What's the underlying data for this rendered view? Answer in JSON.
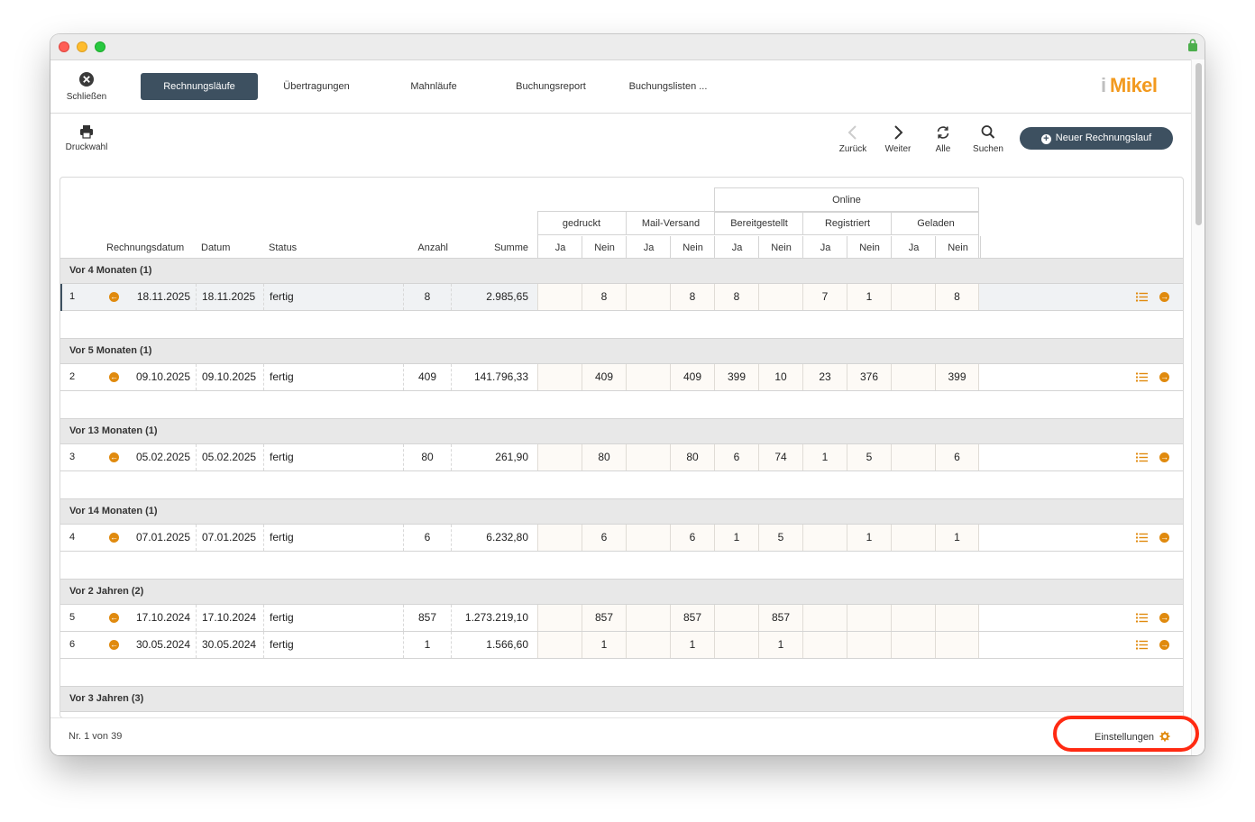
{
  "toolbar": {
    "close_label": "Schließen",
    "tabs": [
      {
        "label": "Rechnungsläufe"
      },
      {
        "label": "Übertragungen"
      },
      {
        "label": "Mahnläufe"
      },
      {
        "label": "Buchungsreport"
      },
      {
        "label": "Buchungslisten ..."
      }
    ],
    "logo_text": "Mikel"
  },
  "actions": {
    "print_label": "Druckwahl",
    "back_label": "Zurück",
    "forward_label": "Weiter",
    "all_label": "Alle",
    "search_label": "Suchen",
    "new_label": "Neuer Rechnungslauf"
  },
  "table": {
    "headers": {
      "rechnungsdatum": "Rechnungsdatum",
      "datum": "Datum",
      "status": "Status",
      "anzahl": "Anzahl",
      "summe": "Summe",
      "online": "Online",
      "gedruckt": "gedruckt",
      "mailversand": "Mail-Versand",
      "bereitgestellt": "Bereitgestellt",
      "registriert": "Registriert",
      "geladen": "Geladen",
      "ja": "Ja",
      "nein": "Nein"
    },
    "groups": [
      {
        "label": "Vor 4 Monaten (1)",
        "rows": [
          {
            "nr": "1",
            "rdatum": "18.11.2025",
            "datum": "18.11.2025",
            "status": "fertig",
            "anzahl": "8",
            "summe": "2.985,65",
            "cols": [
              "",
              "8",
              "",
              "8",
              "8",
              "",
              "7",
              "1",
              "",
              "8"
            ]
          }
        ]
      },
      {
        "label": "Vor 5 Monaten (1)",
        "rows": [
          {
            "nr": "2",
            "rdatum": "09.10.2025",
            "datum": "09.10.2025",
            "status": "fertig",
            "anzahl": "409",
            "summe": "141.796,33",
            "cols": [
              "",
              "409",
              "",
              "409",
              "399",
              "10",
              "23",
              "376",
              "",
              "399"
            ]
          }
        ]
      },
      {
        "label": "Vor 13 Monaten (1)",
        "rows": [
          {
            "nr": "3",
            "rdatum": "05.02.2025",
            "datum": "05.02.2025",
            "status": "fertig",
            "anzahl": "80",
            "summe": "261,90",
            "cols": [
              "",
              "80",
              "",
              "80",
              "6",
              "74",
              "1",
              "5",
              "",
              "6"
            ]
          }
        ]
      },
      {
        "label": "Vor 14 Monaten (1)",
        "rows": [
          {
            "nr": "4",
            "rdatum": "07.01.2025",
            "datum": "07.01.2025",
            "status": "fertig",
            "anzahl": "6",
            "summe": "6.232,80",
            "cols": [
              "",
              "6",
              "",
              "6",
              "1",
              "5",
              "",
              "1",
              "",
              "1"
            ]
          }
        ]
      },
      {
        "label": "Vor 2 Jahren (2)",
        "rows": [
          {
            "nr": "5",
            "rdatum": "17.10.2024",
            "datum": "17.10.2024",
            "status": "fertig",
            "anzahl": "857",
            "summe": "1.273.219,10",
            "cols": [
              "",
              "857",
              "",
              "857",
              "",
              "857",
              "",
              "",
              "",
              ""
            ]
          },
          {
            "nr": "6",
            "rdatum": "30.05.2024",
            "datum": "30.05.2024",
            "status": "fertig",
            "anzahl": "1",
            "summe": "1.566,60",
            "cols": [
              "",
              "1",
              "",
              "1",
              "",
              "1",
              "",
              "",
              "",
              ""
            ]
          }
        ]
      },
      {
        "label": "Vor 3 Jahren (3)",
        "rows": []
      }
    ]
  },
  "footer": {
    "record_count": "Nr. 1 von 39",
    "settings_label": "Einstellungen"
  },
  "colors": {
    "accent_dark": "#3d5060",
    "icon_orange": "#e08a0e",
    "highlight_ring": "#ff2a12"
  }
}
